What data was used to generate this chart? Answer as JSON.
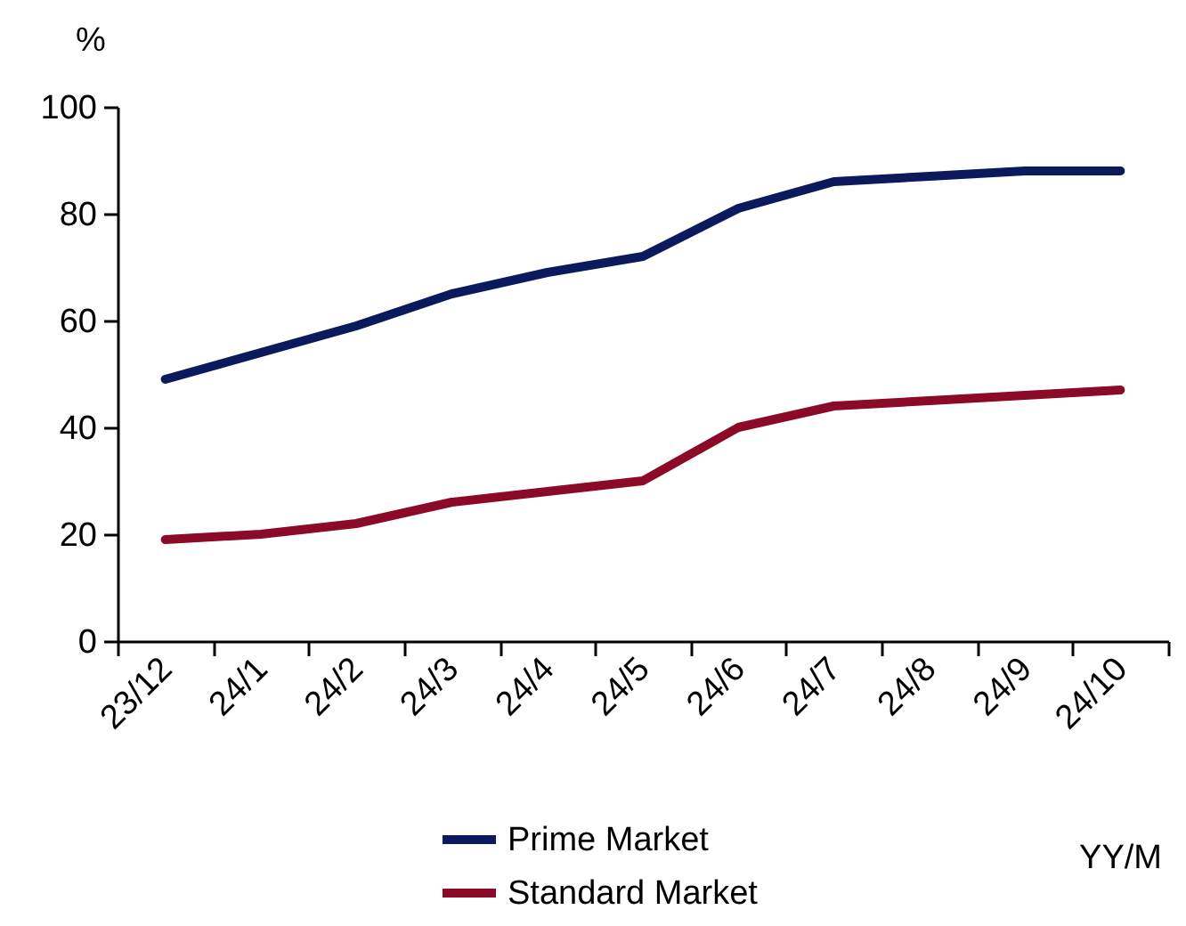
{
  "chart_data": {
    "type": "line",
    "ylabel": "%",
    "xlabel": "YY/M",
    "categories": [
      "23/12",
      "24/1",
      "24/2",
      "24/3",
      "24/4",
      "24/5",
      "24/6",
      "24/7",
      "24/8",
      "24/9",
      "24/10"
    ],
    "series": [
      {
        "name": "Prime Market",
        "color": "#0a1a5c",
        "values": [
          49,
          54,
          59,
          65,
          69,
          72,
          81,
          86,
          87,
          88,
          88
        ]
      },
      {
        "name": "Standard Market",
        "color": "#8b0a28",
        "values": [
          19,
          20,
          22,
          26,
          28,
          30,
          40,
          44,
          45,
          46,
          47
        ]
      }
    ],
    "ylim": [
      0,
      100
    ],
    "yticks": [
      0,
      20,
      40,
      60,
      80,
      100
    ],
    "grid": false,
    "legend": "bottom",
    "marker": "none",
    "line_style": "solid"
  }
}
